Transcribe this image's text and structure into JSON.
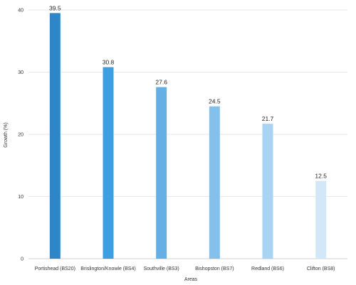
{
  "chart_data": {
    "type": "bar",
    "title": "",
    "xlabel": "Areas",
    "ylabel": "Growth (%)",
    "categories": [
      "Portishead (BS20)",
      "Brislington/Knowle (BS4)",
      "Southville (BS3)",
      "Bishopston (BS7)",
      "Redland (BS6)",
      "Clifton (BS8)"
    ],
    "values": [
      39.5,
      30.8,
      27.6,
      24.5,
      21.7,
      12.5
    ],
    "value_labels": [
      "39.5",
      "30.8",
      "27.6",
      "24.5",
      "21.7",
      "12.5"
    ],
    "colors": [
      "#2e86c8",
      "#3d9ee0",
      "#64b0e6",
      "#83c0ec",
      "#a9d3f2",
      "#d2e7f8"
    ],
    "ylim": [
      0,
      40
    ],
    "yticks": [
      0,
      10,
      20,
      30,
      40
    ],
    "grid": true,
    "legend": "none"
  }
}
